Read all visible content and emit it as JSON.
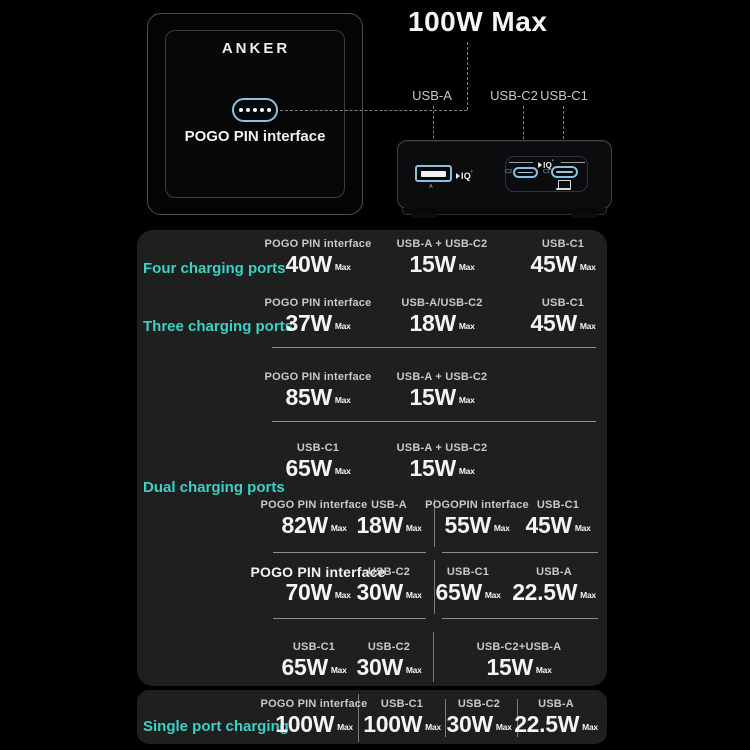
{
  "brand": "ANKER",
  "hero": {
    "title": "100W Max",
    "pogo_label": "POGO PIN interface",
    "port_labels": [
      "USB-A",
      "USB-C2",
      "USB-C1"
    ],
    "poweriq": "IQ",
    "port_marks": {
      "usb_a": "A",
      "c2": "C2",
      "c1": "C1"
    }
  },
  "colors": {
    "accent_cyan": "#3ED0C5",
    "port_blue": "#8AC0DC",
    "card_bg": "#1E2020",
    "page_bg": "#000000"
  },
  "table": {
    "max_suffix": "Max",
    "section_labels": [
      "Four charging ports",
      "Three charging ports",
      "Dual charging ports",
      "Single port charging"
    ],
    "rows": [
      {
        "cells": [
          {
            "port": "POGO PIN interface",
            "watts": "40W"
          },
          {
            "port": "USB-A + USB-C2",
            "watts": "15W"
          },
          {
            "port": "USB-C1",
            "watts": "45W"
          }
        ]
      },
      {
        "cells": [
          {
            "port": "POGO PIN interface",
            "watts": "37W"
          },
          {
            "port": "USB-A/USB-C2",
            "watts": "18W"
          },
          {
            "port": "USB-C1",
            "watts": "45W"
          }
        ]
      },
      {
        "cells": [
          {
            "port": "POGO PIN interface",
            "watts": "85W"
          },
          {
            "port": "USB-A + USB-C2",
            "watts": "15W"
          }
        ]
      },
      {
        "cells": [
          {
            "port": "USB-C1",
            "watts": "65W"
          },
          {
            "port": "USB-A + USB-C2",
            "watts": "15W"
          }
        ]
      },
      {
        "cells": [
          {
            "port": "POGO PIN interface",
            "watts": "82W"
          },
          {
            "port": "USB-A",
            "watts": "18W"
          },
          {
            "port": "POGOPIN interface",
            "watts": "55W"
          },
          {
            "port": "USB-C1",
            "watts": "45W"
          }
        ]
      },
      {
        "cells": [
          {
            "port": "POGO PIN interface",
            "watts": "70W",
            "emphasis": true
          },
          {
            "port": "USB-C2",
            "watts": "30W"
          },
          {
            "port": "USB-C1",
            "watts": "65W"
          },
          {
            "port": "USB-A",
            "watts": "22.5W"
          }
        ]
      },
      {
        "cells": [
          {
            "port": "USB-C1",
            "watts": "65W"
          },
          {
            "port": "USB-C2",
            "watts": "30W"
          },
          {
            "port": "USB-C2+USB-A",
            "watts": "15W"
          }
        ]
      },
      {
        "cells": [
          {
            "port": "POGO PIN interface",
            "watts": "100W"
          },
          {
            "port": "USB-C1",
            "watts": "100W"
          },
          {
            "port": "USB-C2",
            "watts": "30W"
          },
          {
            "port": "USB-A",
            "watts": "22.5W"
          }
        ]
      }
    ]
  }
}
